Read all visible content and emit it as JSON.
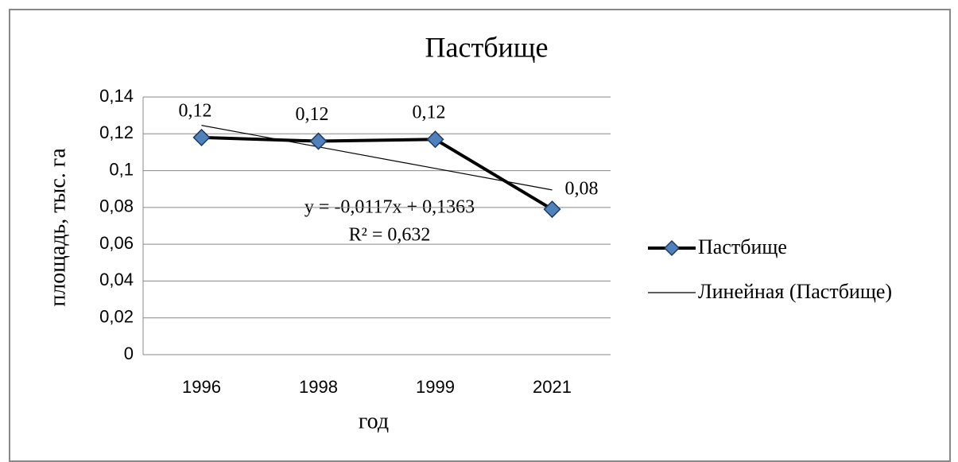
{
  "chart_data": {
    "type": "line",
    "title": "Пастбище",
    "x_label": "год",
    "y_label": "площадь, тыс. га",
    "categories": [
      "1996",
      "1998",
      "1999",
      "2021"
    ],
    "series": [
      {
        "name": "Пастбище",
        "color": "#4f81bd",
        "line_color": "#000000",
        "values": [
          0.118,
          0.116,
          0.117,
          0.079
        ],
        "value_labels": [
          "0,12",
          "0,12",
          "0,12",
          "0,08"
        ]
      },
      {
        "name": "Линейная (Пастбище)",
        "color": "#000000",
        "values": [
          0.1246,
          0.1129,
          0.1012,
          0.0895
        ]
      }
    ],
    "annotations": [
      "y = -0,0117x + 0,1363",
      "R² = 0,632"
    ],
    "ylim": [
      0,
      0.14
    ],
    "yticks": [
      0,
      {
        "value": 0.02,
        "label": "0,02"
      },
      {
        "value": 0.04,
        "label": "0,04"
      },
      {
        "value": 0.06,
        "label": "0,06"
      },
      {
        "value": 0.08,
        "label": "0,08"
      },
      {
        "value": 0.1,
        "label": "0,1"
      },
      {
        "value": 0.12,
        "label": "0,12"
      },
      {
        "value": 0.14,
        "label": "0,14"
      }
    ],
    "grid": true,
    "legend": "right"
  }
}
